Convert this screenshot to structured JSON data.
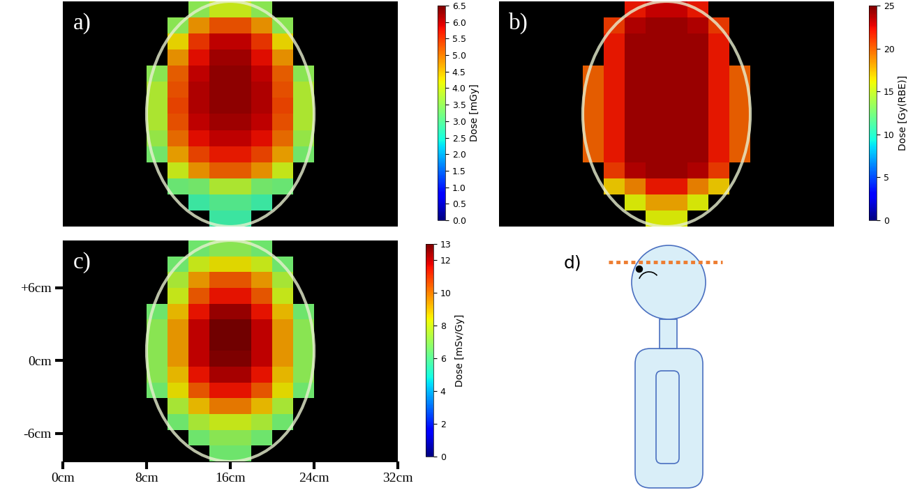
{
  "chart_data": [
    {
      "type": "heatmap",
      "title": "a)",
      "tick_labels": false,
      "xlim": [
        0,
        32
      ],
      "ylim": [
        -8.3,
        9.9
      ],
      "cell_x_range": [
        8,
        24
      ],
      "cell_y_range": [
        -8.3,
        9.9
      ],
      "cells": [
        [
          null,
          null,
          3.5,
          4.0,
          4.0,
          3.5,
          null,
          null
        ],
        [
          null,
          3.5,
          4.8,
          5.3,
          5.3,
          4.8,
          3.5,
          null
        ],
        [
          null,
          4.3,
          5.5,
          6.0,
          6.0,
          5.5,
          4.3,
          null
        ],
        [
          null,
          4.8,
          5.8,
          6.2,
          6.2,
          5.8,
          4.8,
          null
        ],
        [
          3.5,
          5.2,
          6.0,
          6.3,
          6.3,
          6.0,
          5.2,
          3.5
        ],
        [
          3.8,
          5.3,
          6.1,
          6.3,
          6.3,
          6.1,
          5.3,
          3.8
        ],
        [
          3.8,
          5.4,
          6.1,
          6.3,
          6.3,
          6.1,
          5.4,
          3.8
        ],
        [
          3.8,
          5.3,
          6.0,
          6.2,
          6.2,
          6.0,
          5.3,
          3.8
        ],
        [
          3.6,
          5.1,
          5.8,
          6.0,
          6.0,
          5.8,
          5.1,
          3.6
        ],
        [
          3.3,
          4.7,
          5.4,
          5.7,
          5.7,
          5.4,
          4.7,
          3.3
        ],
        [
          null,
          4.0,
          4.8,
          5.2,
          5.2,
          4.8,
          4.0,
          null
        ],
        [
          null,
          3.2,
          3.3,
          3.8,
          3.8,
          3.3,
          3.2,
          null
        ],
        [
          null,
          null,
          2.8,
          3.0,
          3.0,
          2.8,
          null,
          null
        ],
        [
          null,
          null,
          null,
          2.8,
          2.8,
          null,
          null,
          null
        ]
      ],
      "colorbar": {
        "label": "Dose [mGy]",
        "range": [
          0,
          6.5
        ],
        "ticks": [
          {
            "value": 0,
            "label": "0.0"
          },
          0.5,
          {
            "value": 1,
            "label": "1.0"
          },
          1.5,
          {
            "value": 2,
            "label": "2.0"
          },
          2.5,
          {
            "value": 3,
            "label": "3.0"
          },
          3.5,
          {
            "value": 4,
            "label": "4.0"
          },
          4.5,
          {
            "value": 5,
            "label": "5.0"
          },
          5.5,
          {
            "value": 6,
            "label": "6.0"
          },
          6.5
        ]
      }
    },
    {
      "type": "heatmap",
      "title": "b)",
      "tick_labels": false,
      "xlim": [
        0,
        32
      ],
      "ylim": [
        -8.3,
        9.9
      ],
      "cell_x_range": [
        8,
        24
      ],
      "cell_y_range": [
        -8.3,
        9.9
      ],
      "cells": [
        [
          null,
          null,
          22,
          23,
          23,
          22,
          null,
          null
        ],
        [
          null,
          21,
          23.5,
          24,
          24,
          23.5,
          21,
          null
        ],
        [
          null,
          22,
          24,
          24,
          24,
          24,
          22,
          null
        ],
        [
          null,
          22,
          24,
          24,
          24,
          24,
          22,
          null
        ],
        [
          20,
          22,
          24,
          24,
          24,
          24,
          22,
          20
        ],
        [
          20,
          22,
          24,
          24,
          24,
          24,
          22,
          20
        ],
        [
          20,
          22,
          24,
          24,
          24,
          24,
          22,
          20
        ],
        [
          20,
          22,
          24,
          24,
          24,
          24,
          22,
          20
        ],
        [
          20,
          22,
          24,
          24,
          24,
          24,
          22,
          20
        ],
        [
          20,
          22,
          24,
          24,
          24,
          24,
          22,
          20
        ],
        [
          null,
          21,
          23.5,
          24,
          24,
          23.5,
          21,
          null
        ],
        [
          null,
          17,
          19,
          22,
          22,
          19,
          17,
          null
        ],
        [
          null,
          null,
          16,
          18,
          18,
          16,
          null,
          null
        ],
        [
          null,
          null,
          null,
          16,
          16,
          null,
          null,
          null
        ]
      ],
      "colorbar": {
        "label": "Dose [Gy(RBE)]",
        "range": [
          0,
          25
        ],
        "ticks": [
          0,
          5,
          10,
          15,
          20,
          25
        ]
      }
    },
    {
      "type": "heatmap",
      "title": "c)",
      "xlim": [
        0,
        32
      ],
      "ylim": [
        -8.3,
        9.9
      ],
      "xticks": [
        {
          "value": 0,
          "label": "0cm"
        },
        {
          "value": 8,
          "label": "8cm"
        },
        {
          "value": 16,
          "label": "16cm"
        },
        {
          "value": 24,
          "label": "24cm"
        },
        {
          "value": 32,
          "label": "32cm"
        }
      ],
      "yticks": [
        {
          "value": 6,
          "label": "+6cm"
        },
        {
          "value": 0,
          "label": "0cm"
        },
        {
          "value": -6,
          "label": "-6cm"
        }
      ],
      "cell_x_range": [
        8,
        24
      ],
      "cell_y_range": [
        -8.3,
        9.9
      ],
      "cells": [
        [
          null,
          null,
          6.5,
          7,
          7,
          6.5,
          null,
          null
        ],
        [
          null,
          6.5,
          8,
          8.5,
          8.5,
          8,
          6.5,
          null
        ],
        [
          null,
          7.5,
          9.5,
          10.5,
          10.5,
          9.5,
          7.5,
          null
        ],
        [
          null,
          8,
          10.5,
          11.5,
          11.5,
          10.5,
          8,
          null
        ],
        [
          6.5,
          9,
          11.5,
          12.5,
          12.5,
          11.5,
          9,
          6.5
        ],
        [
          7,
          9.5,
          12,
          13,
          13,
          12,
          9.5,
          7
        ],
        [
          7,
          9.5,
          12,
          13,
          13,
          12,
          9.5,
          7
        ],
        [
          7,
          9.5,
          12,
          12.8,
          12.8,
          12,
          9.5,
          7
        ],
        [
          7,
          9,
          11.5,
          12.3,
          12.3,
          11.5,
          9,
          7
        ],
        [
          6.5,
          8.5,
          10.5,
          11.5,
          11.5,
          10.5,
          8.5,
          6.5
        ],
        [
          null,
          7.5,
          9,
          10,
          10,
          9,
          7.5,
          null
        ],
        [
          null,
          6.5,
          7.5,
          8,
          8,
          7.5,
          6.5,
          null
        ],
        [
          null,
          null,
          6.5,
          7,
          7,
          6.5,
          null,
          null
        ],
        [
          null,
          null,
          null,
          6.5,
          6.5,
          null,
          null,
          null
        ]
      ],
      "colorbar": {
        "label": "Dose [mSv/Gy]",
        "range": [
          0,
          13
        ],
        "ticks": [
          0,
          2,
          4,
          6,
          8,
          10,
          12,
          13
        ]
      }
    }
  ],
  "diagram": {
    "label": "d)"
  }
}
